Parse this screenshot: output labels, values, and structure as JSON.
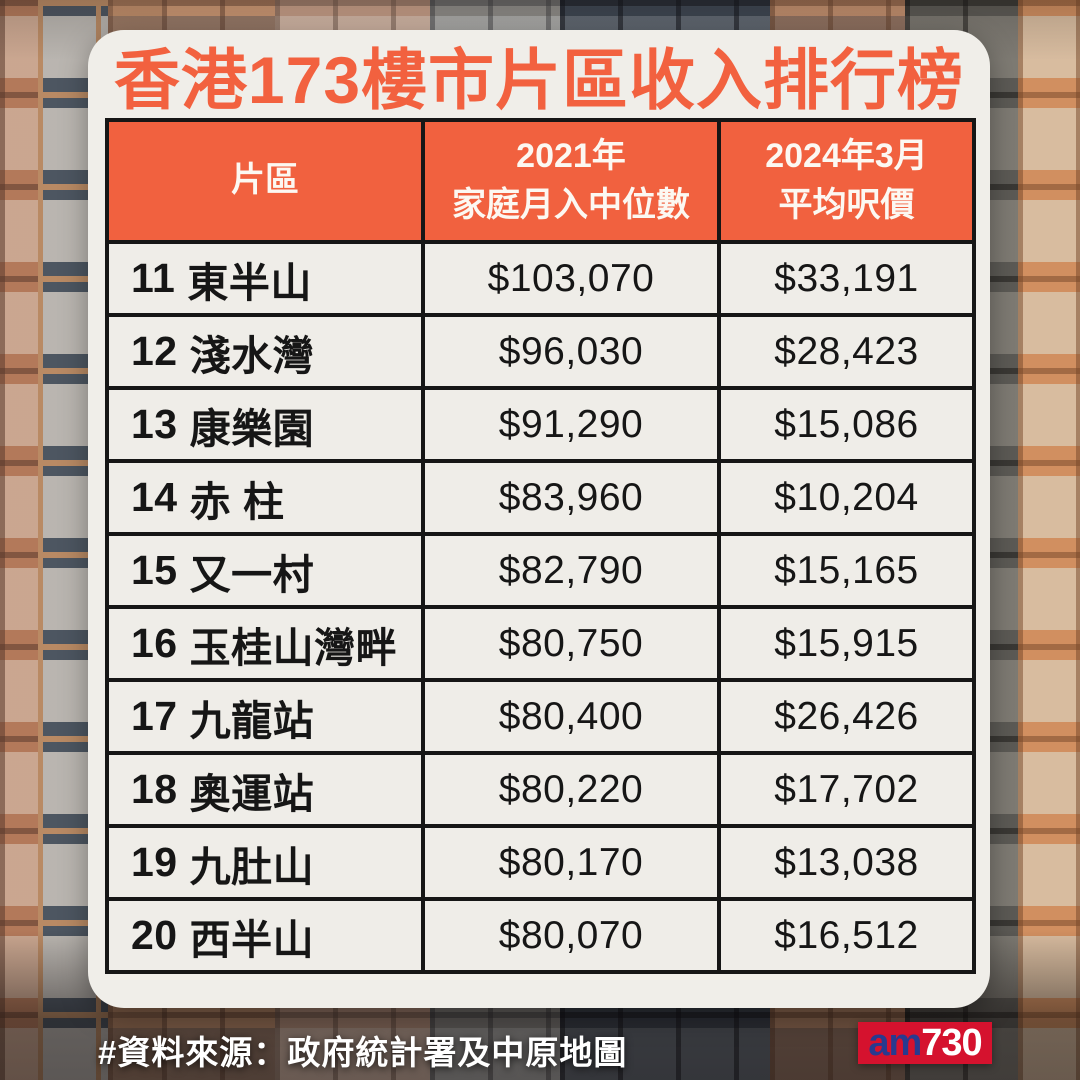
{
  "header": {
    "title": "香港173樓市片區收入排行榜"
  },
  "table": {
    "columns": {
      "district": "片區",
      "income_line1": "2021年",
      "income_line2": "家庭月入中位數",
      "price_line1": "2024年3月",
      "price_line2": "平均呎價"
    },
    "rows": [
      {
        "rank": "11",
        "district": "東半山",
        "income": "$103,070",
        "price": "$33,191"
      },
      {
        "rank": "12",
        "district": "淺水灣",
        "income": "$96,030",
        "price": "$28,423"
      },
      {
        "rank": "13",
        "district": "康樂園",
        "income": "$91,290",
        "price": "$15,086"
      },
      {
        "rank": "14",
        "district": "赤 柱",
        "income": "$83,960",
        "price": "$10,204"
      },
      {
        "rank": "15",
        "district": "又一村",
        "income": "$82,790",
        "price": "$15,165"
      },
      {
        "rank": "16",
        "district": "玉桂山灣畔",
        "income": "$80,750",
        "price": "$15,915"
      },
      {
        "rank": "17",
        "district": "九龍站",
        "income": "$80,400",
        "price": "$26,426"
      },
      {
        "rank": "18",
        "district": "奧運站",
        "income": "$80,220",
        "price": "$17,702"
      },
      {
        "rank": "19",
        "district": "九肚山",
        "income": "$80,170",
        "price": "$13,038"
      },
      {
        "rank": "20",
        "district": "西半山",
        "income": "$80,070",
        "price": "$16,512"
      }
    ]
  },
  "footer": {
    "source": "#資料來源：政府統計署及中原地圖",
    "logo_am": "am",
    "logo_730": "730"
  },
  "colors": {
    "accent_orange": "#F2613F",
    "card_bg": "#F0EEE9",
    "table_border": "#161616",
    "cell_bg": "#EFEDE8",
    "logo_red": "#D5122E",
    "logo_blue": "#283A8F"
  },
  "chart_data": {
    "type": "table",
    "title": "香港173樓市片區收入排行榜",
    "columns": [
      "片區",
      "2021年家庭月入中位數",
      "2024年3月平均呎價"
    ],
    "rows": [
      [
        "11 東半山",
        103070,
        33191
      ],
      [
        "12 淺水灣",
        96030,
        28423
      ],
      [
        "13 康樂園",
        91290,
        15086
      ],
      [
        "14 赤 柱",
        83960,
        10204
      ],
      [
        "15 又一村",
        82790,
        15165
      ],
      [
        "16 玉桂山灣畔",
        80750,
        15915
      ],
      [
        "17 九龍站",
        80400,
        26426
      ],
      [
        "18 奧運站",
        80220,
        17702
      ],
      [
        "19 九肚山",
        80170,
        13038
      ],
      [
        "20 西半山",
        80070,
        16512
      ]
    ],
    "units": {
      "income": "HKD/month",
      "price": "HKD/sq-ft"
    },
    "source": "政府統計署及中原地圖"
  }
}
